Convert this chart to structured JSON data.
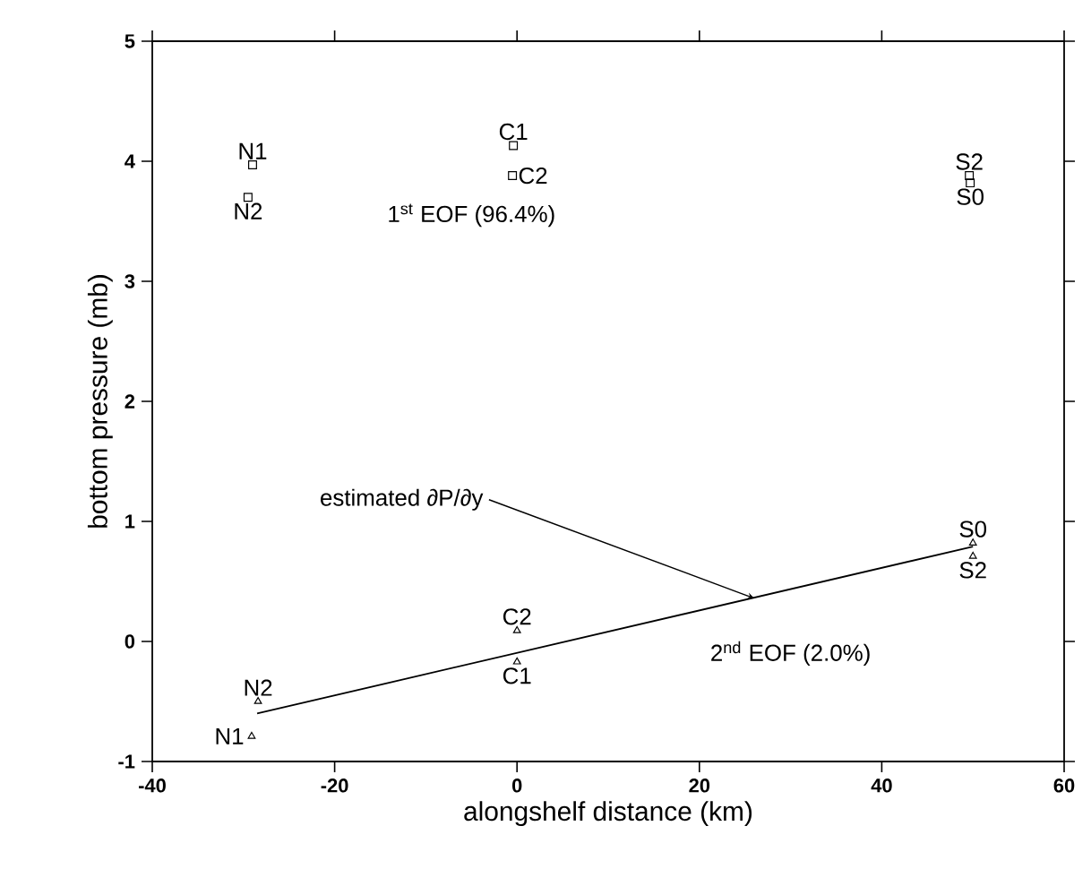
{
  "chart_data": {
    "type": "scatter",
    "xlabel": "alongshelf distance (km)",
    "ylabel": "bottom pressure (mb)",
    "xlim": [
      -40,
      60
    ],
    "xticks": [
      -40,
      -20,
      0,
      20,
      40,
      60
    ],
    "ylim": [
      -1,
      5
    ],
    "yticks": [
      -1,
      0,
      1,
      2,
      3,
      4,
      5
    ],
    "grid": false,
    "series": [
      {
        "marker": "square",
        "color": "#000000",
        "x": [
          -29,
          -29.5,
          -0.4,
          -0.5,
          49.6,
          49.7
        ],
        "values": [
          3.97,
          3.7,
          4.13,
          3.88,
          3.88,
          3.82
        ]
      },
      {
        "marker": "triangle",
        "color": "#000000",
        "x": [
          -29.1,
          -28.4,
          0,
          0,
          50,
          50
        ],
        "values": [
          -0.79,
          -0.5,
          0.09,
          -0.17,
          0.82,
          0.71
        ]
      },
      {
        "type": "line",
        "marker": "none",
        "color": "#000000",
        "x": [
          -28.5,
          50
        ],
        "values": [
          -0.6,
          0.79
        ]
      }
    ],
    "annotations": [
      {
        "text": "N1",
        "x": -29,
        "y": 3.97
      },
      {
        "text": "N2",
        "x": -29.5,
        "y": 3.7
      },
      {
        "text": "C1",
        "x": -0.4,
        "y": 4.13
      },
      {
        "text": "C2",
        "x": -0.5,
        "y": 3.88
      },
      {
        "text": "S2",
        "x": 49.6,
        "y": 3.88
      },
      {
        "text": "S0",
        "x": 49.7,
        "y": 3.82
      },
      {
        "text": "N1",
        "x": -29.1,
        "y": -0.79
      },
      {
        "text": "N2",
        "x": -28.4,
        "y": -0.5
      },
      {
        "text": "C2",
        "x": 0,
        "y": 0.09
      },
      {
        "text": "C1",
        "x": 0,
        "y": -0.17
      },
      {
        "text": "S0",
        "x": 50,
        "y": 0.82
      },
      {
        "text": "S2",
        "x": 50,
        "y": 0.71
      },
      {
        "text": "estimated ∂P/∂y",
        "x": 26,
        "y": 0.36
      },
      "1$^{st}$ EOF (96.4%)",
      "2$^{nd}$ EOF (2.0%)"
    ]
  }
}
